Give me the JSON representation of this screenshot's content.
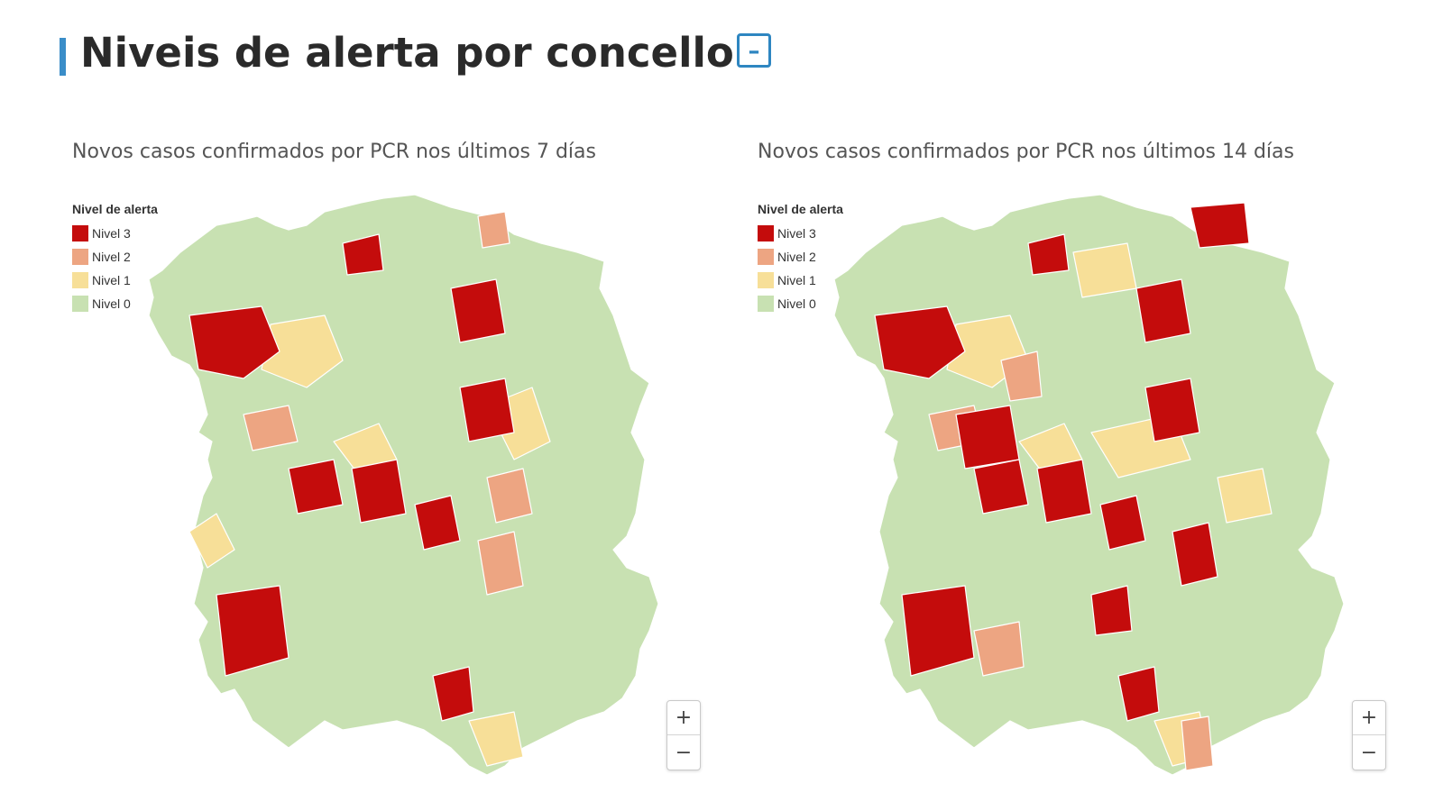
{
  "header": {
    "title": "Niveis de alerta por concello",
    "collapse_label": "–"
  },
  "colors": {
    "accent": "#3a8dc8",
    "nivel_3": "#c40c0c",
    "nivel_2": "#eda582",
    "nivel_1": "#f7df98",
    "nivel_0": "#c8e1b2",
    "borders": "#ffffff"
  },
  "icons": {
    "collapse": "minus-square-icon",
    "zoom_in": "plus-icon",
    "zoom_out": "minus-icon"
  },
  "maps": [
    {
      "subtitle": "Novos casos confirmados por PCR nos últimos 7 días",
      "legend": {
        "title": "Nivel de alerta",
        "items": [
          {
            "label": "Nivel 3",
            "color": "#c40c0c"
          },
          {
            "label": "Nivel 2",
            "color": "#eda582"
          },
          {
            "label": "Nivel 1",
            "color": "#f7df98"
          },
          {
            "label": "Nivel 0",
            "color": "#c8e1b2"
          }
        ]
      },
      "zoom": {
        "in_label": "+",
        "out_label": "−"
      }
    },
    {
      "subtitle": "Novos casos confirmados por PCR nos últimos 14 días",
      "legend": {
        "title": "Nivel de alerta",
        "items": [
          {
            "label": "Nivel 3",
            "color": "#c40c0c"
          },
          {
            "label": "Nivel 2",
            "color": "#eda582"
          },
          {
            "label": "Nivel 1",
            "color": "#f7df98"
          },
          {
            "label": "Nivel 0",
            "color": "#c8e1b2"
          }
        ]
      },
      "zoom": {
        "in_label": "+",
        "out_label": "−"
      }
    }
  ]
}
